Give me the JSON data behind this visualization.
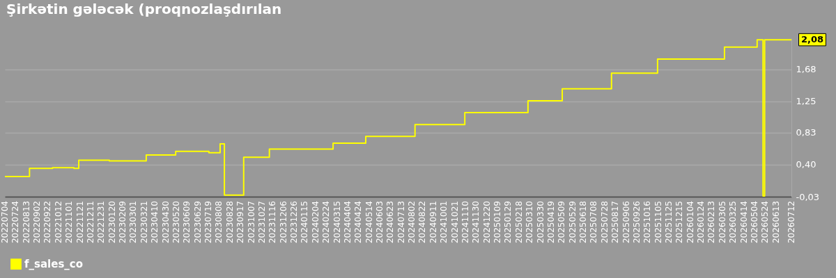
{
  "chart_data": {
    "type": "step",
    "title": "Şirkətin gələcək (proqnozlaşdırılan",
    "x": [
      "2022-07-04",
      "2022-08-19",
      "2022-10-01",
      "2022-11-10",
      "2022-11-19",
      "2023-01-15",
      "2023-03-25",
      "2023-05-19",
      "2023-07-20",
      "2023-08-10",
      "2023-08-18",
      "2023-09-23",
      "2023-11-10",
      "2024-03-08",
      "2024-05-08",
      "2024-08-08",
      "2024-11-09",
      "2025-03-07",
      "2025-05-10",
      "2025-08-10",
      "2025-11-04",
      "2026-03-09",
      "2026-05-09",
      "2026-05-20",
      "2026-05-23",
      "2026-07-12"
    ],
    "series": [
      {
        "name": "f_sales_co",
        "color": "#ffff00",
        "values": [
          0.24,
          0.35,
          0.36,
          0.35,
          0.46,
          0.45,
          0.53,
          0.58,
          0.56,
          0.68,
          -0.01,
          0.5,
          0.61,
          0.69,
          0.78,
          0.94,
          1.1,
          1.26,
          1.42,
          1.63,
          1.82,
          1.98,
          2.08,
          -0.02,
          2.08,
          2.08
        ]
      }
    ],
    "xlim": [
      "2022-07-04",
      "2026-07-12"
    ],
    "xticks": [
      {
        "value": "2022-07-04",
        "label": "20220704"
      },
      {
        "value": "2022-07-24",
        "label": "20220724"
      },
      {
        "value": "2022-08-13",
        "label": "20220813"
      },
      {
        "value": "2022-09-02",
        "label": "20220902"
      },
      {
        "value": "2022-09-22",
        "label": "20220922"
      },
      {
        "value": "2022-10-12",
        "label": "20221012"
      },
      {
        "value": "2022-11-01",
        "label": "20221101"
      },
      {
        "value": "2022-11-21",
        "label": "20221121"
      },
      {
        "value": "2022-12-11",
        "label": "20221211"
      },
      {
        "value": "2022-12-31",
        "label": "20221231"
      },
      {
        "value": "2023-01-20",
        "label": "20230120"
      },
      {
        "value": "2023-02-09",
        "label": "20230209"
      },
      {
        "value": "2023-03-01",
        "label": "20230301"
      },
      {
        "value": "2023-03-21",
        "label": "20230321"
      },
      {
        "value": "2023-04-10",
        "label": "20230410"
      },
      {
        "value": "2023-04-30",
        "label": "20230430"
      },
      {
        "value": "2023-05-20",
        "label": "20230520"
      },
      {
        "value": "2023-06-09",
        "label": "20230609"
      },
      {
        "value": "2023-06-29",
        "label": "20230629"
      },
      {
        "value": "2023-07-19",
        "label": "20230719"
      },
      {
        "value": "2023-08-08",
        "label": "20230808"
      },
      {
        "value": "2023-08-28",
        "label": "20230828"
      },
      {
        "value": "2023-09-17",
        "label": "20230917"
      },
      {
        "value": "2023-10-07",
        "label": "20231007"
      },
      {
        "value": "2023-10-27",
        "label": "20231027"
      },
      {
        "value": "2023-11-16",
        "label": "20231116"
      },
      {
        "value": "2023-12-06",
        "label": "20231206"
      },
      {
        "value": "2023-12-26",
        "label": "20231226"
      },
      {
        "value": "2024-01-15",
        "label": "20240115"
      },
      {
        "value": "2024-02-04",
        "label": "20240204"
      },
      {
        "value": "2024-02-24",
        "label": "20240224"
      },
      {
        "value": "2024-03-15",
        "label": "20240315"
      },
      {
        "value": "2024-04-04",
        "label": "20240404"
      },
      {
        "value": "2024-04-24",
        "label": "20240424"
      },
      {
        "value": "2024-05-14",
        "label": "20240514"
      },
      {
        "value": "2024-06-03",
        "label": "20240603"
      },
      {
        "value": "2024-06-23",
        "label": "20240623"
      },
      {
        "value": "2024-07-13",
        "label": "20240713"
      },
      {
        "value": "2024-08-02",
        "label": "20240802"
      },
      {
        "value": "2024-08-22",
        "label": "20240822"
      },
      {
        "value": "2024-09-11",
        "label": "20240911"
      },
      {
        "value": "2024-10-01",
        "label": "20241001"
      },
      {
        "value": "2024-10-21",
        "label": "20241021"
      },
      {
        "value": "2024-11-10",
        "label": "20241110"
      },
      {
        "value": "2024-11-30",
        "label": "20241130"
      },
      {
        "value": "2024-12-20",
        "label": "20241220"
      },
      {
        "value": "2025-01-09",
        "label": "20250109"
      },
      {
        "value": "2025-01-29",
        "label": "20250129"
      },
      {
        "value": "2025-02-18",
        "label": "20250218"
      },
      {
        "value": "2025-03-10",
        "label": "20250310"
      },
      {
        "value": "2025-03-30",
        "label": "20250330"
      },
      {
        "value": "2025-04-19",
        "label": "20250419"
      },
      {
        "value": "2025-05-09",
        "label": "20250509"
      },
      {
        "value": "2025-05-29",
        "label": "20250529"
      },
      {
        "value": "2025-06-18",
        "label": "20250618"
      },
      {
        "value": "2025-07-08",
        "label": "20250708"
      },
      {
        "value": "2025-07-28",
        "label": "20250728"
      },
      {
        "value": "2025-08-17",
        "label": "20250817"
      },
      {
        "value": "2025-09-06",
        "label": "20250906"
      },
      {
        "value": "2025-09-26",
        "label": "20250926"
      },
      {
        "value": "2025-10-16",
        "label": "20251016"
      },
      {
        "value": "2025-11-05",
        "label": "20251105"
      },
      {
        "value": "2025-11-25",
        "label": "20251125"
      },
      {
        "value": "2025-12-15",
        "label": "20251215"
      },
      {
        "value": "2026-01-04",
        "label": "20260104"
      },
      {
        "value": "2026-01-24",
        "label": "20260124"
      },
      {
        "value": "2026-02-13",
        "label": "20260213"
      },
      {
        "value": "2026-03-05",
        "label": "20260305"
      },
      {
        "value": "2026-03-25",
        "label": "20260325"
      },
      {
        "value": "2026-04-14",
        "label": "20260414"
      },
      {
        "value": "2026-05-04",
        "label": "20260504"
      },
      {
        "value": "2026-05-24",
        "label": "20260524"
      },
      {
        "value": "2026-06-13",
        "label": "20260613"
      },
      {
        "value": "2026-07-12",
        "label": "20260712"
      }
    ],
    "ylim": [
      -0.03,
      2.1
    ],
    "yticks": [
      {
        "value": -0.03,
        "label": "-0,03"
      },
      {
        "value": 0.4,
        "label": "0,40"
      },
      {
        "value": 0.83,
        "label": "0,83"
      },
      {
        "value": 1.25,
        "label": "1,25"
      },
      {
        "value": 1.68,
        "label": "1,68"
      }
    ],
    "grid": "y",
    "legend": "bottom left",
    "annotations": [
      {
        "text": "2,08",
        "x": "2026-07-12",
        "y": 2.08
      }
    ]
  }
}
